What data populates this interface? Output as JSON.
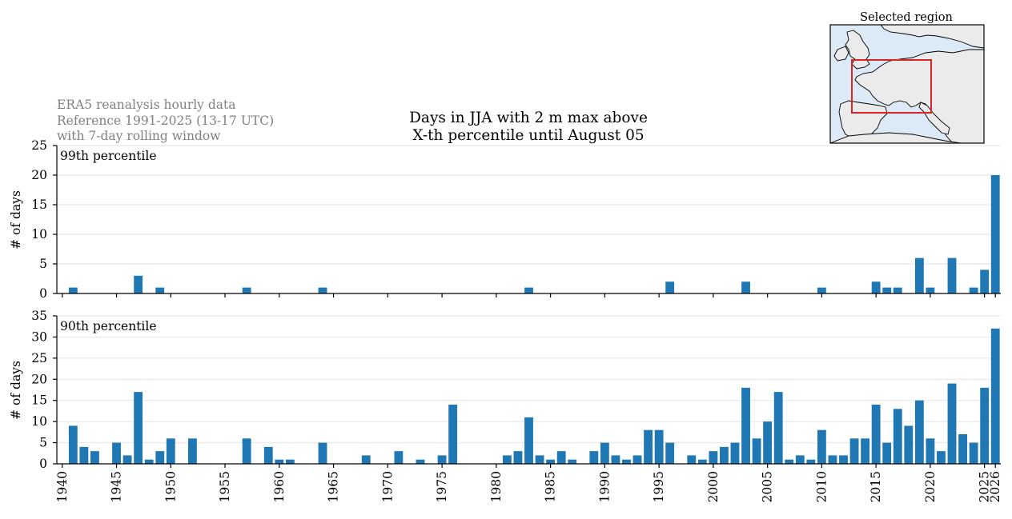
{
  "notes": {
    "line1": "ERA5 reanalysis hourly data",
    "line2": "Reference 1991-2025 (13-17 UTC)",
    "line3": "with 7-day rolling window"
  },
  "title": {
    "line1": "Days in JJA with 2 m max above",
    "line2": "X-th percentile until August 05"
  },
  "inset": {
    "title": "Selected region",
    "colors": {
      "ocean": "#dce9f6",
      "land": "#ebebeb",
      "box": "#d62728"
    }
  },
  "colors": {
    "bar": "#1f77b4",
    "grid": "#ebebeb",
    "note": "#808080"
  },
  "chart_data": [
    {
      "type": "bar",
      "panel_label": "99th percentile",
      "ylabel": "# of days",
      "ylim": [
        0,
        25
      ],
      "yticks": [
        0,
        5,
        10,
        15,
        20,
        25
      ],
      "xlim": [
        1939.5,
        2026.5
      ],
      "x": [
        1941,
        1947,
        1949,
        1957,
        1964,
        1983,
        1996,
        2003,
        2010,
        2015,
        2016,
        2017,
        2019,
        2020,
        2022,
        2024,
        2025,
        2026
      ],
      "values": [
        1,
        3,
        1,
        1,
        1,
        1,
        2,
        2,
        1,
        2,
        1,
        1,
        6,
        1,
        6,
        1,
        4,
        20
      ]
    },
    {
      "type": "bar",
      "panel_label": "90th percentile",
      "ylabel": "# of days",
      "ylim": [
        0,
        35
      ],
      "yticks": [
        0,
        5,
        10,
        15,
        20,
        25,
        30,
        35
      ],
      "xlim": [
        1939.5,
        2026.5
      ],
      "xticks": [
        1940,
        1945,
        1950,
        1955,
        1960,
        1965,
        1970,
        1975,
        1980,
        1985,
        1990,
        1995,
        2000,
        2005,
        2010,
        2015,
        2020,
        2025,
        2026
      ],
      "x": [
        1941,
        1942,
        1943,
        1945,
        1946,
        1947,
        1948,
        1949,
        1950,
        1952,
        1957,
        1959,
        1960,
        1961,
        1964,
        1968,
        1971,
        1973,
        1975,
        1976,
        1981,
        1982,
        1983,
        1984,
        1985,
        1986,
        1987,
        1989,
        1990,
        1991,
        1992,
        1993,
        1994,
        1995,
        1996,
        1998,
        1999,
        2000,
        2001,
        2002,
        2003,
        2004,
        2005,
        2006,
        2007,
        2008,
        2009,
        2010,
        2011,
        2012,
        2013,
        2014,
        2015,
        2016,
        2017,
        2018,
        2019,
        2020,
        2021,
        2022,
        2023,
        2024,
        2025,
        2026
      ],
      "values": [
        9,
        4,
        3,
        5,
        2,
        17,
        1,
        3,
        6,
        6,
        6,
        4,
        1,
        1,
        5,
        2,
        3,
        1,
        2,
        14,
        2,
        3,
        11,
        2,
        1,
        3,
        1,
        3,
        5,
        2,
        1,
        2,
        8,
        8,
        5,
        2,
        1,
        3,
        4,
        5,
        18,
        6,
        10,
        17,
        1,
        2,
        1,
        8,
        2,
        2,
        6,
        6,
        14,
        5,
        13,
        9,
        15,
        6,
        3,
        19,
        7,
        5,
        18,
        32
      ]
    }
  ]
}
